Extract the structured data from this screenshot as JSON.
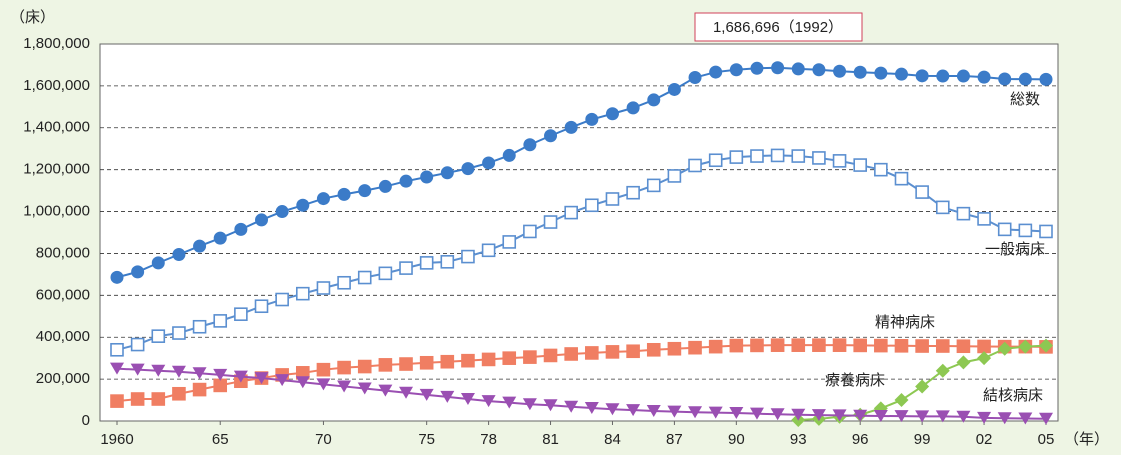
{
  "chart_data": {
    "type": "line",
    "y_unit": "（床）",
    "x_unit": "（年）",
    "annotation": "1,686,696（1992）",
    "x": [
      1960,
      1961,
      1962,
      1963,
      1964,
      1965,
      1966,
      1967,
      1968,
      1969,
      1970,
      1971,
      1972,
      1973,
      1974,
      1975,
      1976,
      1977,
      1978,
      1979,
      1980,
      1981,
      1982,
      1983,
      1984,
      1985,
      1986,
      1987,
      1988,
      1989,
      1990,
      1991,
      1992,
      1993,
      1994,
      1995,
      1996,
      1997,
      1998,
      1999,
      2000,
      2001,
      2002,
      2003,
      2004,
      2005
    ],
    "xlim": [
      1960,
      2005
    ],
    "xticks": [
      1960,
      {
        "value": 1965,
        "label": "65"
      },
      {
        "value": 1970,
        "label": "70"
      },
      {
        "value": 1975,
        "label": "75"
      },
      {
        "value": 1978,
        "label": "78"
      },
      {
        "value": 1981,
        "label": "81"
      },
      {
        "value": 1984,
        "label": "84"
      },
      {
        "value": 1987,
        "label": "87"
      },
      {
        "value": 1990,
        "label": "90"
      },
      {
        "value": 1993,
        "label": "93"
      },
      {
        "value": 1996,
        "label": "96"
      },
      {
        "value": 1999,
        "label": "99"
      },
      {
        "value": 2002,
        "label": "02"
      },
      {
        "value": 2005,
        "label": "05"
      }
    ],
    "ylim": [
      0,
      1800000
    ],
    "yticks": [
      0,
      {
        "value": 200000,
        "label": "200,000"
      },
      {
        "value": 400000,
        "label": "400,000"
      },
      {
        "value": 600000,
        "label": "600,000"
      },
      {
        "value": 800000,
        "label": "800,000"
      },
      {
        "value": 1000000,
        "label": "1,000,000"
      },
      {
        "value": 1200000,
        "label": "1,200,000"
      },
      {
        "value": 1400000,
        "label": "1,400,000"
      },
      {
        "value": 1600000,
        "label": "1,600,000"
      },
      {
        "value": 1800000,
        "label": "1,800,000"
      }
    ],
    "grid": true,
    "series": [
      {
        "name": "総数",
        "color": "#3b7bc8",
        "marker": "circle",
        "values": [
          686000,
          712000,
          755000,
          795000,
          835000,
          873000,
          915000,
          960000,
          1000000,
          1030000,
          1062000,
          1082000,
          1100000,
          1120000,
          1145000,
          1165000,
          1185000,
          1205000,
          1232000,
          1268000,
          1319000,
          1362000,
          1402000,
          1440000,
          1467000,
          1495000,
          1533000,
          1583000,
          1640000,
          1666000,
          1677000,
          1684000,
          1686696,
          1681000,
          1677000,
          1670000,
          1665000,
          1661000,
          1656000,
          1648000,
          1647000,
          1647000,
          1642000,
          1633000,
          1632000,
          1631000
        ]
      },
      {
        "name": "一般病床",
        "color": "#5b8fd0",
        "marker": "square-open",
        "values": [
          340000,
          365000,
          405000,
          420000,
          450000,
          478000,
          510000,
          548000,
          580000,
          608000,
          635000,
          660000,
          685000,
          705000,
          730000,
          755000,
          760000,
          785000,
          815000,
          855000,
          905000,
          950000,
          995000,
          1030000,
          1060000,
          1090000,
          1125000,
          1170000,
          1220000,
          1245000,
          1260000,
          1265000,
          1268000,
          1265000,
          1256000,
          1242000,
          1222000,
          1200000,
          1157000,
          1093000,
          1020000,
          990000,
          965000,
          915000,
          910000,
          905000
        ]
      },
      {
        "name": "精神病床",
        "color": "#f07e62",
        "marker": "square",
        "values": [
          95000,
          105000,
          105000,
          130000,
          150000,
          170000,
          190000,
          205000,
          220000,
          230000,
          245000,
          255000,
          260000,
          268000,
          272000,
          278000,
          283000,
          288000,
          294000,
          300000,
          305000,
          313000,
          320000,
          325000,
          330000,
          333000,
          340000,
          345000,
          350000,
          355000,
          360000,
          361000,
          362000,
          362000,
          362000,
          362000,
          361000,
          360000,
          359000,
          358000,
          358000,
          357000,
          356000,
          355000,
          355000,
          354000
        ]
      },
      {
        "name": "療養病床",
        "color": "#8dc852",
        "marker": "diamond",
        "values": [
          null,
          null,
          null,
          null,
          null,
          null,
          null,
          null,
          null,
          null,
          null,
          null,
          null,
          null,
          null,
          null,
          null,
          null,
          null,
          null,
          null,
          null,
          null,
          null,
          null,
          null,
          null,
          null,
          null,
          null,
          null,
          null,
          null,
          5000,
          10000,
          20000,
          30000,
          60000,
          100000,
          165000,
          240000,
          280000,
          300000,
          345000,
          355000,
          360000
        ]
      },
      {
        "name": "結核病床",
        "color": "#9a4fb2",
        "marker": "triangle-down",
        "values": [
          250000,
          245000,
          240000,
          235000,
          228000,
          220000,
          212000,
          205000,
          195000,
          185000,
          175000,
          165000,
          155000,
          145000,
          135000,
          125000,
          115000,
          105000,
          95000,
          88000,
          80000,
          75000,
          68000,
          62000,
          56000,
          52000,
          48000,
          45000,
          42000,
          40000,
          38000,
          35000,
          32000,
          30000,
          28000,
          27000,
          25000,
          24000,
          23000,
          22000,
          22000,
          20000,
          15000,
          13000,
          12000,
          11000
        ]
      }
    ]
  }
}
